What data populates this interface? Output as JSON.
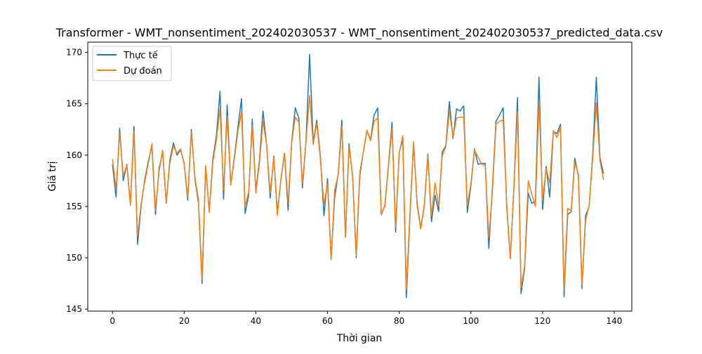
{
  "chart_data": {
    "type": "line",
    "title": "Transformer - WMT_nonsentiment_202402030537 - WMT_nonsentiment_202402030537_predicted_data.csv",
    "xlabel": "Thời gian",
    "ylabel": "Giá trị",
    "xlim": [
      -6.9,
      144.9
    ],
    "ylim": [
      144.8,
      171.0
    ],
    "xticks": [
      0,
      20,
      40,
      60,
      80,
      100,
      120,
      140
    ],
    "yticks": [
      145,
      150,
      155,
      160,
      165,
      170
    ],
    "grid": false,
    "legend_position": "top-left",
    "x": [
      0,
      1,
      2,
      3,
      4,
      5,
      6,
      7,
      8,
      9,
      10,
      11,
      12,
      13,
      14,
      15,
      16,
      17,
      18,
      19,
      20,
      21,
      22,
      23,
      24,
      25,
      26,
      27,
      28,
      29,
      30,
      31,
      32,
      33,
      34,
      35,
      36,
      37,
      38,
      39,
      40,
      41,
      42,
      43,
      44,
      45,
      46,
      47,
      48,
      49,
      50,
      51,
      52,
      53,
      54,
      55,
      56,
      57,
      58,
      59,
      60,
      61,
      62,
      63,
      64,
      65,
      66,
      67,
      68,
      69,
      70,
      71,
      72,
      73,
      74,
      75,
      76,
      77,
      78,
      79,
      80,
      81,
      82,
      83,
      84,
      85,
      86,
      87,
      88,
      89,
      90,
      91,
      92,
      93,
      94,
      95,
      96,
      97,
      98,
      99,
      100,
      101,
      102,
      103,
      104,
      105,
      106,
      107,
      108,
      109,
      110,
      111,
      112,
      113,
      114,
      115,
      116,
      117,
      118,
      119,
      120,
      121,
      122,
      123,
      124,
      125,
      126,
      127,
      128,
      129,
      130,
      131,
      132,
      133,
      134,
      135,
      136,
      137
    ],
    "series": [
      {
        "name": "Thực tế",
        "color": "#1f77b4",
        "values": [
          159.1,
          155.9,
          162.6,
          157.5,
          159.1,
          155.3,
          162.8,
          151.3,
          155.1,
          157.6,
          159.4,
          160.9,
          154.2,
          158.7,
          160.3,
          155.3,
          159.5,
          161.2,
          160.0,
          160.5,
          159.2,
          155.6,
          162.5,
          157.7,
          155.3,
          147.5,
          158.9,
          154.5,
          159.6,
          161.9,
          166.2,
          155.7,
          164.9,
          157.1,
          159.8,
          162.7,
          165.5,
          154.3,
          156.1,
          163.5,
          156.5,
          159.5,
          164.3,
          161.0,
          155.8,
          159.9,
          154.4,
          157.6,
          160.2,
          154.6,
          161.3,
          164.6,
          163.6,
          156.8,
          161.4,
          169.8,
          161.2,
          163.4,
          159.9,
          154.1,
          157.7,
          149.9,
          155.9,
          158.2,
          163.4,
          152.0,
          161.1,
          157.9,
          150.0,
          158.0,
          160.3,
          162.4,
          161.5,
          163.9,
          164.6,
          154.2,
          155.1,
          159.0,
          163.2,
          152.5,
          160.3,
          161.5,
          146.1,
          154.1,
          161.1,
          155.3,
          152.9,
          155.1,
          160.1,
          153.5,
          156.1,
          154.5,
          160.3,
          160.9,
          165.2,
          161.6,
          164.5,
          164.3,
          164.8,
          154.4,
          157.0,
          160.6,
          159.1,
          159.2,
          159.2,
          150.9,
          156.8,
          163.3,
          163.9,
          164.6,
          155.0,
          149.9,
          156.8,
          165.6,
          146.5,
          149.0,
          156.3,
          155.3,
          155.5,
          167.6,
          154.7,
          158.9,
          155.9,
          162.3,
          162.1,
          163.0,
          146.2,
          154.2,
          154.5,
          159.7,
          157.9,
          147.0,
          154.1,
          155.0,
          160.1,
          167.6,
          159.8,
          158.2
        ]
      },
      {
        "name": "Dự đoán",
        "color": "#ff7f0e",
        "values": [
          159.6,
          156.7,
          162.1,
          158.0,
          159.0,
          155.1,
          162.3,
          152.1,
          155.3,
          157.4,
          159.2,
          161.1,
          154.6,
          158.4,
          160.5,
          155.4,
          159.2,
          160.9,
          160.2,
          160.6,
          159.1,
          155.9,
          162.2,
          157.9,
          155.6,
          147.9,
          159.0,
          154.4,
          159.3,
          161.5,
          164.5,
          156.6,
          163.8,
          157.1,
          159.6,
          162.3,
          164.2,
          155.0,
          156.4,
          162.9,
          156.3,
          159.2,
          163.3,
          161.0,
          156.3,
          159.8,
          154.1,
          157.7,
          160.2,
          155.3,
          161.2,
          163.7,
          163.2,
          157.2,
          161.3,
          165.8,
          161.0,
          163.1,
          159.6,
          155.2,
          157.2,
          149.8,
          156.6,
          158.1,
          162.8,
          152.0,
          160.8,
          158.0,
          150.2,
          158.3,
          160.3,
          162.4,
          161.4,
          163.3,
          163.6,
          154.3,
          155.0,
          158.9,
          162.6,
          153.0,
          160.2,
          161.9,
          146.9,
          154.4,
          161.3,
          155.1,
          152.8,
          155.0,
          159.9,
          154.1,
          157.3,
          155.0,
          159.9,
          160.8,
          164.3,
          161.7,
          163.6,
          163.7,
          163.7,
          155.1,
          157.2,
          160.5,
          159.8,
          159.1,
          159.0,
          152.0,
          156.4,
          163.0,
          163.3,
          163.4,
          155.3,
          149.9,
          156.7,
          164.2,
          147.1,
          149.2,
          157.5,
          156.2,
          155.0,
          165.3,
          155.6,
          158.7,
          157.3,
          162.4,
          161.7,
          162.7,
          146.8,
          154.8,
          154.6,
          159.3,
          158.1,
          147.3,
          153.6,
          155.1,
          159.7,
          165.1,
          159.5,
          157.6
        ]
      }
    ]
  }
}
